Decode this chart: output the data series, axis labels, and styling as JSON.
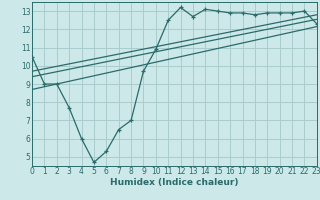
{
  "xlabel": "Humidex (Indice chaleur)",
  "bg_color": "#cce8e8",
  "grid_color": "#aacccc",
  "line_color": "#2a6b6b",
  "xlim": [
    0,
    23
  ],
  "ylim": [
    4.5,
    13.5
  ],
  "xticks": [
    0,
    1,
    2,
    3,
    4,
    5,
    6,
    7,
    8,
    9,
    10,
    11,
    12,
    13,
    14,
    15,
    16,
    17,
    18,
    19,
    20,
    21,
    22,
    23
  ],
  "yticks": [
    5,
    6,
    7,
    8,
    9,
    10,
    11,
    12,
    13
  ],
  "line1_x": [
    0,
    1,
    2,
    3,
    4,
    5,
    6,
    7,
    8,
    9,
    10,
    11,
    12,
    13,
    14,
    15,
    16,
    17,
    18,
    19,
    20,
    21,
    22,
    23
  ],
  "line1_y": [
    10.5,
    9.0,
    9.0,
    7.7,
    6.0,
    4.7,
    5.3,
    6.5,
    7.0,
    9.7,
    10.9,
    12.5,
    13.2,
    12.7,
    13.1,
    13.0,
    12.9,
    12.9,
    12.8,
    12.9,
    12.9,
    12.9,
    13.0,
    12.3
  ],
  "line2_x": [
    0,
    23
  ],
  "line2_y": [
    9.4,
    12.55
  ],
  "line3_x": [
    0,
    23
  ],
  "line3_y": [
    9.7,
    12.8
  ],
  "line4_x": [
    0,
    23
  ],
  "line4_y": [
    8.7,
    12.15
  ]
}
